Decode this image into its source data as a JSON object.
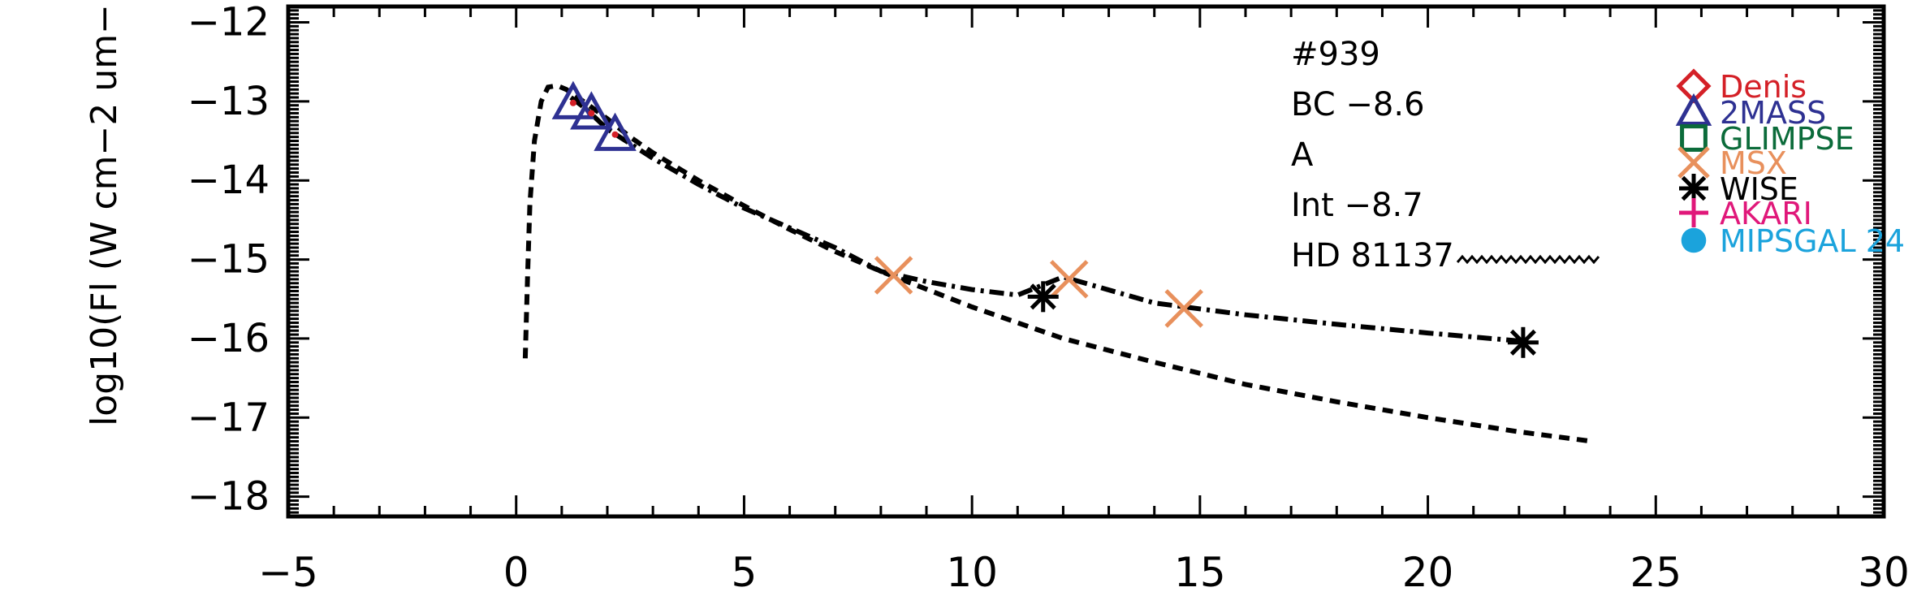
{
  "chart_data": {
    "type": "scatter",
    "title": "",
    "xlabel": "",
    "ylabel": "log10(Fl (W cm−2 um−",
    "xlim": [
      -5,
      30
    ],
    "ylim": [
      -18.25,
      -11.8
    ],
    "x_ticks": [
      -5,
      0,
      5,
      10,
      15,
      20,
      25,
      30
    ],
    "x_tick_labels": [
      "−5",
      "0",
      "5",
      "10",
      "15",
      "20",
      "25",
      "30"
    ],
    "y_ticks": [
      -18,
      -17,
      -16,
      -15,
      -14,
      -13,
      -12
    ],
    "y_tick_labels": [
      "−18",
      "−17",
      "−16",
      "−15",
      "−14",
      "−13",
      "−12"
    ],
    "grid": false,
    "legend_position": "right",
    "annotations": [
      "#939",
      "BC −8.6",
      "A",
      "Int −8.7",
      "HD 81137"
    ],
    "legend": [
      {
        "label": "Denis",
        "marker": "diamond",
        "color": "#d42027"
      },
      {
        "label": "2MASS",
        "marker": "triangle",
        "color": "#2e3192"
      },
      {
        "label": "GLIMPSE",
        "marker": "square",
        "color": "#0b6b3a"
      },
      {
        "label": "MSX",
        "marker": "x",
        "color": "#e8905c"
      },
      {
        "label": "WISE",
        "marker": "asterisk",
        "color": "#000000"
      },
      {
        "label": "AKARI",
        "marker": "plus",
        "color": "#e0187a"
      },
      {
        "label": "MIPSGAL 24",
        "marker": "circle",
        "color": "#1ba3dc"
      }
    ],
    "series": [
      {
        "name": "2MASS",
        "marker": "triangle",
        "color": "#2e3192",
        "x": [
          1.25,
          1.65,
          2.17
        ],
        "y": [
          -13.02,
          -13.15,
          -13.42
        ]
      },
      {
        "name": "MSX",
        "marker": "x",
        "color": "#e8905c",
        "x": [
          8.28,
          12.13,
          14.65
        ],
        "y": [
          -15.2,
          -15.25,
          -15.62
        ]
      },
      {
        "name": "WISE",
        "marker": "asterisk",
        "color": "#000000",
        "x": [
          11.56,
          22.09
        ],
        "y": [
          -15.47,
          -16.05
        ]
      },
      {
        "line": "dashed",
        "color": "#000000",
        "x": [
          0.2,
          0.25,
          0.3,
          0.4,
          0.55,
          0.7,
          0.9,
          1.1,
          1.3,
          1.6,
          2.0,
          2.5,
          3.0,
          4.0,
          5.0,
          6.0,
          7.0,
          8.0,
          10.0,
          12.0,
          14.0,
          16.0,
          18.0,
          20.0,
          22.0,
          23.6
        ],
        "y": [
          -16.25,
          -15.2,
          -14.3,
          -13.5,
          -13.0,
          -12.82,
          -12.8,
          -12.85,
          -12.93,
          -13.05,
          -13.22,
          -13.45,
          -13.65,
          -14.0,
          -14.32,
          -14.62,
          -14.9,
          -15.15,
          -15.6,
          -16.0,
          -16.3,
          -16.58,
          -16.8,
          -17.0,
          -17.18,
          -17.3
        ]
      },
      {
        "line": "dash-dot",
        "color": "#000000",
        "x": [
          1.2,
          1.5,
          2.0,
          3.0,
          4.0,
          5.0,
          6.0,
          7.0,
          8.0,
          9.0,
          10.0,
          11.0,
          12.0,
          14.0,
          16.0,
          18.0,
          20.0,
          22.0
        ],
        "y": [
          -12.95,
          -13.08,
          -13.35,
          -13.72,
          -14.05,
          -14.35,
          -14.6,
          -14.85,
          -15.15,
          -15.28,
          -15.38,
          -15.45,
          -15.22,
          -15.55,
          -15.7,
          -15.82,
          -15.93,
          -16.03
        ]
      }
    ]
  }
}
